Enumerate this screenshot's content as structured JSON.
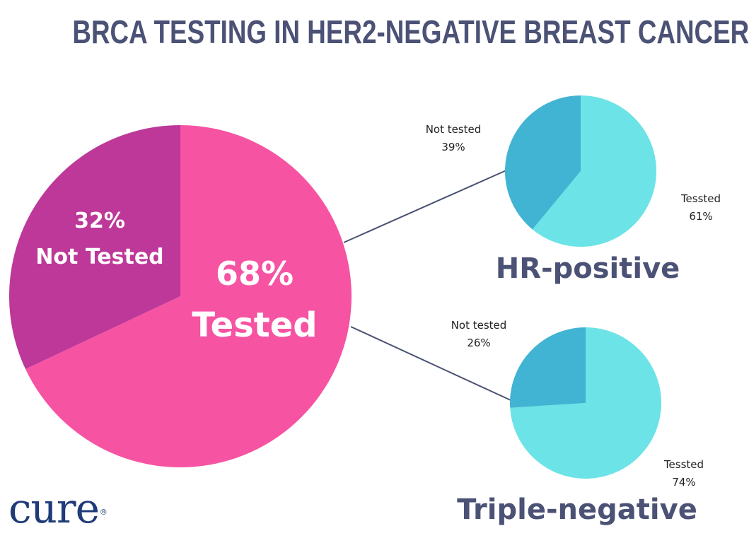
{
  "title": "BRCA TESTING IN HER2-NEGATIVE BREAST CANCER",
  "logo": {
    "text": "cure",
    "mark": "®"
  },
  "colors": {
    "tested_main": "#f653a3",
    "not_tested_main": "#bd3899",
    "tested_sub": "#6ce3e6",
    "not_tested_sub": "#41b3d3",
    "connector": "#4b5275",
    "title": "#4b5275"
  },
  "chart_data": [
    {
      "type": "pie",
      "title": "BRCA TESTING IN HER2-NEGATIVE BREAST CANCER",
      "slices": [
        {
          "label_pct": "68%",
          "label_text": "Tested",
          "value": 68
        },
        {
          "label_pct": "32%",
          "label_text": "Not Tested",
          "value": 32
        }
      ]
    },
    {
      "type": "pie",
      "group": "HR-positive",
      "slices": [
        {
          "label_pct": "61%",
          "label_text": "Tessted",
          "value": 61
        },
        {
          "label_pct": "39%",
          "label_text": "Not tested",
          "value": 39
        }
      ]
    },
    {
      "type": "pie",
      "group": "Triple-negative",
      "slices": [
        {
          "label_pct": "74%",
          "label_text": "Tessted",
          "value": 74
        },
        {
          "label_pct": "26%",
          "label_text": "Not tested",
          "value": 26
        }
      ]
    }
  ]
}
